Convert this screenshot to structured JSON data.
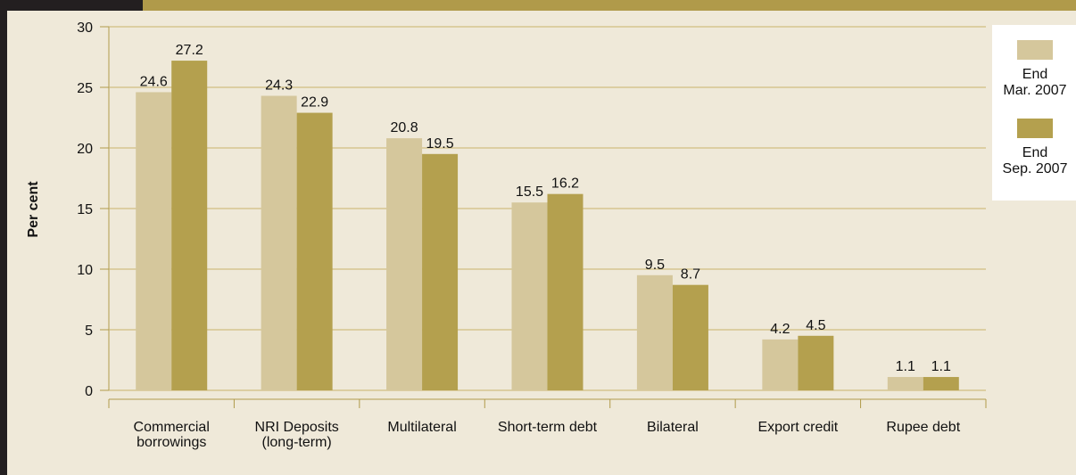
{
  "chart_data": {
    "type": "bar",
    "y_label": "Per cent",
    "categories": [
      "Commercial\nborrowings",
      "NRI Deposits\n(long-term)",
      "Multilateral",
      "Short-term debt",
      "Bilateral",
      "Export credit",
      "Rupee debt"
    ],
    "series": [
      {
        "name": "End\nMar. 2007",
        "color": "#d5c79c",
        "values": [
          24.6,
          24.3,
          20.8,
          15.5,
          9.5,
          4.2,
          1.1
        ]
      },
      {
        "name": "End\nSep. 2007",
        "color": "#b4a04e",
        "values": [
          27.2,
          22.9,
          19.5,
          16.2,
          8.7,
          4.5,
          1.1
        ]
      }
    ],
    "ylim": [
      0,
      30
    ],
    "yticks": [
      0,
      5,
      10,
      15,
      20,
      25,
      30
    ],
    "grid": true,
    "legend": "right"
  }
}
